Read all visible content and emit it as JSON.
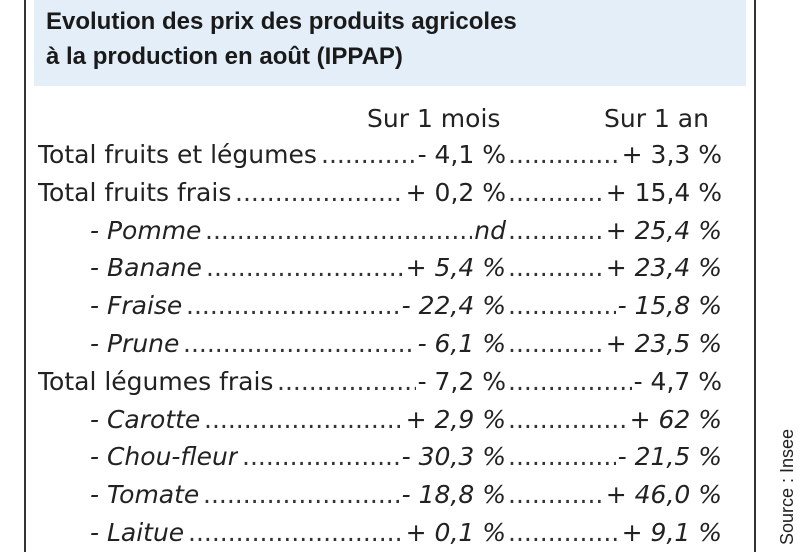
{
  "title": {
    "line1": "Evolution des prix des produits agricoles",
    "line2": "à la production en août (IPPAP)"
  },
  "columns": {
    "month": "Sur 1 mois",
    "year": "Sur 1 an"
  },
  "rows": [
    {
      "label": "Total fruits et légumes",
      "month": "- 4,1 %",
      "year": "+ 3,3 %",
      "sub": false
    },
    {
      "label": "Total fruits frais",
      "month": "+ 0,2 %",
      "year": "+ 15,4 %",
      "sub": false
    },
    {
      "label": "- Pomme",
      "month": "nd",
      "year": "+ 25,4 %",
      "sub": true
    },
    {
      "label": "- Banane",
      "month": "+ 5,4 %",
      "year": "+ 23,4 %",
      "sub": true
    },
    {
      "label": "- Fraise",
      "month": "- 22,4 %",
      "year": "- 15,8 %",
      "sub": true
    },
    {
      "label": "- Prune",
      "month": "- 6,1 %",
      "year": "+ 23,5 %",
      "sub": true
    },
    {
      "label": "Total légumes frais",
      "month": "- 7,2 %",
      "year": "- 4,7 %",
      "sub": false
    },
    {
      "label": "- Carotte",
      "month": "+ 2,9 %",
      "year": "+ 62 %",
      "sub": true
    },
    {
      "label": "- Chou-fleur",
      "month": "- 30,3 %",
      "year": "- 21,5 %",
      "sub": true
    },
    {
      "label": "- Tomate",
      "month": "- 18,8 %",
      "year": "+ 46,0 %",
      "sub": true
    },
    {
      "label": "- Laitue",
      "month": "+ 0,1 %",
      "year": "+ 9,1 %",
      "sub": true
    }
  ],
  "source": "Source : Insee",
  "colors": {
    "header_bg": "#e3eef8",
    "text": "#222222",
    "border": "#333333"
  }
}
